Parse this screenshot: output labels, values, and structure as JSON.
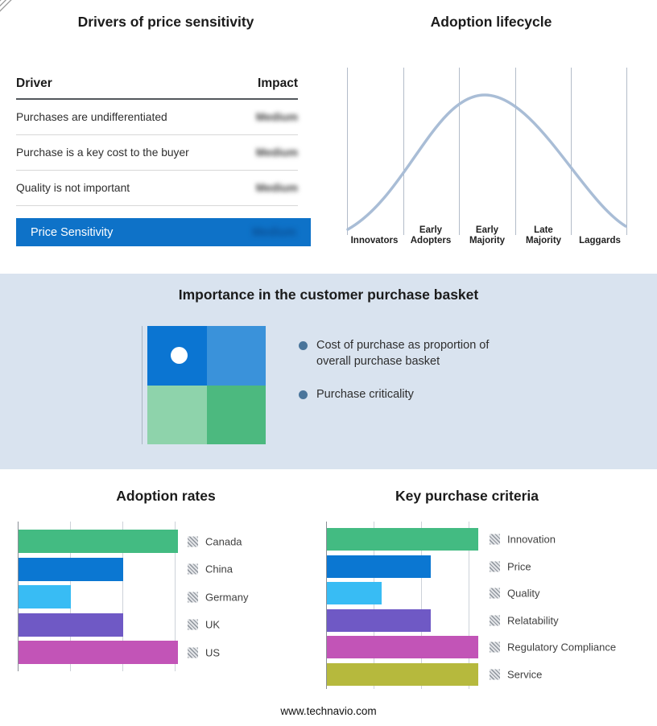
{
  "page": {
    "footer_url": "www.technavio.com"
  },
  "drivers_panel": {
    "title": "Drivers of price sensitivity",
    "columns": {
      "driver": "Driver",
      "impact": "Impact"
    },
    "rows": [
      {
        "driver": "Purchases are undifferentiated",
        "impact": "Medium"
      },
      {
        "driver": "Purchase is a key cost to the buyer",
        "impact": "Medium"
      },
      {
        "driver": "Quality is not important",
        "impact": "Medium"
      }
    ],
    "summary_row": {
      "label": "Price Sensitivity",
      "impact": "Medium",
      "bg": "#0e72c8"
    },
    "impact_values_redacted": true
  },
  "basket_panel": {
    "title": "Importance in the customer purchase basket",
    "bullets": [
      "Cost of purchase as proportion of overall purchase basket",
      "Purchase criticality"
    ],
    "matrix_colors": {
      "top_left": "#0b75d2",
      "top_right": "#3a92da",
      "bottom_left": "#8ed3ab",
      "bottom_right": "#4cb97f"
    }
  },
  "chart_data": [
    {
      "id": "adoption-lifecycle",
      "type": "line",
      "title": "Adoption lifecycle",
      "x_categories": [
        "Innovators",
        "Early Adopters",
        "Early Majority",
        "Late Majority",
        "Laggards"
      ],
      "shape": "bell curve rising from Innovators, peaking over Early Majority, falling to Laggards",
      "curve_color": "#a9bdd6",
      "grid": "vertical stage separators, no y axis"
    },
    {
      "id": "adoption-rates",
      "type": "bar",
      "orientation": "horizontal",
      "title": "Adoption rates",
      "categories": [
        "Canada",
        "China",
        "Germany",
        "UK",
        "US"
      ],
      "values": [
        3.05,
        2.0,
        1.0,
        2.0,
        3.05
      ],
      "colors": [
        "#43bb82",
        "#0b77d2",
        "#38bcf4",
        "#6f59c5",
        "#c254b7"
      ],
      "xlim": [
        0,
        3.3
      ],
      "grid": true,
      "legend_position": "right"
    },
    {
      "id": "key-purchase-criteria",
      "type": "bar",
      "orientation": "horizontal",
      "title": "Key purchase criteria",
      "categories": [
        "Innovation",
        "Price",
        "Quality",
        "Relatability",
        "Regulatory Compliance",
        "Service"
      ],
      "values": [
        3.2,
        2.2,
        1.15,
        2.2,
        3.2,
        3.2
      ],
      "colors": [
        "#43bb82",
        "#0b77d2",
        "#38bcf4",
        "#6f59c5",
        "#c254b7",
        "#b6b93d"
      ],
      "xlim": [
        0,
        3.4
      ],
      "grid": true,
      "legend_position": "right"
    }
  ]
}
